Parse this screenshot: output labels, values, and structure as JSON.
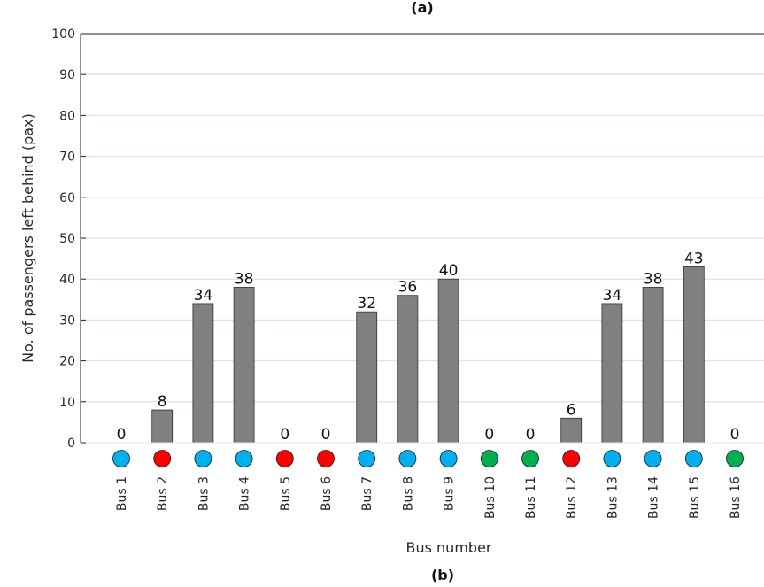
{
  "chart_data": {
    "type": "bar",
    "title": "(a)",
    "caption": "(b)",
    "xlabel": "Bus number",
    "ylabel": "No. of passengers  left behind (pax)",
    "ylim": [
      0,
      100
    ],
    "yticks": [
      0,
      10,
      20,
      30,
      40,
      50,
      60,
      70,
      80,
      90,
      100
    ],
    "grid": true,
    "categories": [
      "Bus 1",
      "Bus 2",
      "Bus 3",
      "Bus 4",
      "Bus 5",
      "Bus 6",
      "Bus 7",
      "Bus 8",
      "Bus 9",
      "Bus 10",
      "Bus 11",
      "Bus 12",
      "Bus 13",
      "Bus 14",
      "Bus 15",
      "Bus 16"
    ],
    "values": [
      0,
      8,
      34,
      38,
      0,
      0,
      32,
      36,
      40,
      0,
      0,
      6,
      34,
      38,
      43,
      0
    ],
    "data_labels": [
      "0",
      "8",
      "34",
      "38",
      "0",
      "0",
      "32",
      "36",
      "40",
      "0",
      "0",
      "6",
      "34",
      "38",
      "43",
      "0"
    ],
    "bar_color": "#808080",
    "bar_edge_color": "#333333",
    "grid_color": "#dde3ee",
    "marker_colors": [
      "#00b0f0",
      "#ff0000",
      "#00b0f0",
      "#00b0f0",
      "#ff0000",
      "#ff0000",
      "#00b0f0",
      "#00b0f0",
      "#00b0f0",
      "#00b050",
      "#00b050",
      "#ff0000",
      "#00b0f0",
      "#00b0f0",
      "#00b0f0",
      "#00b050"
    ]
  }
}
